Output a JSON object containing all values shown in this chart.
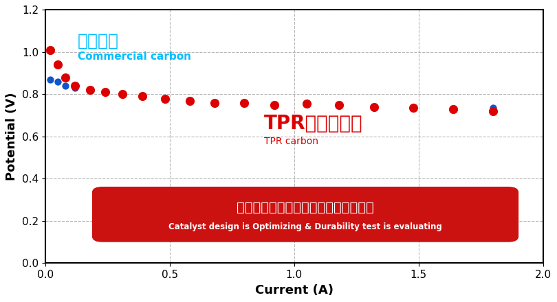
{
  "xlabel": "Current (A)",
  "ylabel": "Potential (V)",
  "xlim": [
    0,
    2
  ],
  "ylim": [
    0,
    1.2
  ],
  "xticks": [
    0,
    0.5,
    1.0,
    1.5,
    2.0
  ],
  "yticks": [
    0,
    0.2,
    0.4,
    0.6,
    0.8,
    1.0,
    1.2
  ],
  "background_color": "#ffffff",
  "plot_bg_color": "#ffffff",
  "grid_color": "#999999",
  "red_x": [
    0.02,
    0.05,
    0.08,
    0.12,
    0.18,
    0.24,
    0.31,
    0.39,
    0.48,
    0.58,
    0.68,
    0.8,
    0.92,
    1.05,
    1.18,
    1.32,
    1.48,
    1.64,
    1.8
  ],
  "red_y": [
    1.01,
    0.94,
    0.88,
    0.84,
    0.82,
    0.81,
    0.8,
    0.79,
    0.78,
    0.77,
    0.76,
    0.76,
    0.75,
    0.755,
    0.75,
    0.74,
    0.735,
    0.73,
    0.72
  ],
  "blue_x": [
    0.02,
    0.05,
    0.08,
    0.12,
    0.18,
    0.24,
    0.31,
    0.39,
    0.48,
    0.58,
    0.68,
    0.8,
    0.92,
    1.05,
    1.18,
    1.32,
    1.48,
    1.64,
    1.8
  ],
  "blue_y": [
    0.87,
    0.86,
    0.84,
    0.83,
    0.82,
    0.81,
    0.8,
    0.79,
    0.78,
    0.77,
    0.76,
    0.76,
    0.75,
    0.755,
    0.75,
    0.74,
    0.735,
    0.73,
    0.735
  ],
  "red_color": "#dd0000",
  "blue_color": "#1155cc",
  "red_marker_size": 90,
  "blue_marker_size": 55,
  "label_jp_commercial": "市販炭素",
  "label_en_commercial": "Commercial carbon",
  "label_jp_tpr": "TPR製カーボン",
  "label_en_tpr": "TPR carbon",
  "banner_jp": "触媒条件最適化中・耗久性試験評価中",
  "banner_en": "Catalyst design is Optimizing & Durability test is evaluating",
  "banner_color": "#cc1111",
  "banner_text_color": "#ffffff",
  "cyan_color": "#00bfff",
  "tpr_label_color": "#dd0000"
}
